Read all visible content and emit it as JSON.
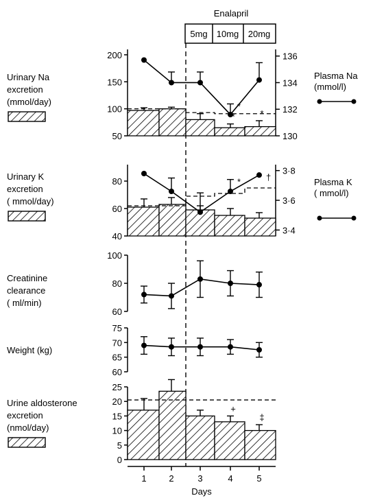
{
  "chart_data": {
    "type": "bar",
    "xlabel": "Days",
    "x_ticks": [
      "1",
      "2",
      "3",
      "4",
      "5"
    ],
    "treatment": {
      "title": "Enalapril",
      "doses": [
        {
          "label": "5mg",
          "day": 3
        },
        {
          "label": "10mg",
          "day": 4
        },
        {
          "label": "20mg",
          "day": 5
        }
      ]
    },
    "panels": [
      {
        "id": "na",
        "left_label_lines": [
          "Urinary Na",
          "excretion",
          "(mmol/day)"
        ],
        "right_label_lines": [
          "Plasma Na",
          "(mmol/l)"
        ],
        "left_ylim": [
          50,
          210
        ],
        "left_ticks": [
          "200",
          "150",
          "100",
          "50"
        ],
        "right_ylim": [
          130,
          136.5
        ],
        "right_ticks": [
          "136",
          "134",
          "132",
          "130"
        ],
        "bar_series": {
          "type": "bar",
          "values": [
            97,
            100,
            80,
            65,
            67
          ],
          "errors": [
            5,
            3,
            11,
            7,
            11
          ]
        },
        "line_series": {
          "type": "line",
          "axis": "right",
          "values": [
            135.7,
            134.0,
            134.0,
            131.6,
            134.2
          ],
          "errors": [
            0,
            0.8,
            0.8,
            0.8,
            1.3
          ],
          "annotations": [
            {
              "day": 4,
              "text": "*"
            }
          ]
        },
        "bar_annotations": [
          {
            "day": 4,
            "text": "*"
          },
          {
            "day": 5,
            "text": "*"
          }
        ],
        "dashed_reference": {
          "from_day": 1,
          "to_day": 5,
          "values": [
            100,
            100,
            93,
            91,
            91
          ]
        }
      },
      {
        "id": "k",
        "left_label_lines": [
          "Urinary K",
          "excretion",
          "( mmol/day)"
        ],
        "right_label_lines": [
          "Plasma K",
          "( mmol/l)"
        ],
        "left_ylim": [
          40,
          92
        ],
        "left_ticks": [
          "80",
          "60",
          "40"
        ],
        "right_ylim": [
          3.36,
          3.84
        ],
        "right_ticks": [
          "3·8",
          "3·6",
          "3·4"
        ],
        "bar_series": {
          "type": "bar",
          "values": [
            61,
            63,
            59,
            55,
            53
          ],
          "errors": [
            6,
            5,
            3,
            5,
            4
          ]
        },
        "line_series": {
          "type": "line",
          "axis": "right",
          "values": [
            3.78,
            3.66,
            3.52,
            3.66,
            3.77
          ],
          "errors": [
            0,
            0.09,
            0.13,
            0.08,
            0
          ],
          "annotations": [
            {
              "day": 4,
              "text": "*"
            },
            {
              "day": 5,
              "text": "†"
            }
          ]
        },
        "dashed_reference": {
          "from_day": 1,
          "to_day": 5,
          "values": [
            62,
            62,
            69,
            71,
            75
          ]
        }
      },
      {
        "id": "creat",
        "left_label_lines": [
          "Creatinine",
          "clearance",
          "( ml/min)"
        ],
        "left_ylim": [
          60,
          100
        ],
        "left_ticks": [
          "100",
          "80",
          "60"
        ],
        "line_series": {
          "type": "line",
          "values": [
            72,
            71,
            83,
            80,
            79
          ],
          "errors": [
            6,
            9,
            13,
            9,
            9
          ]
        }
      },
      {
        "id": "weight",
        "left_label_lines": [
          "Weight (kg)"
        ],
        "left_ylim": [
          60,
          75
        ],
        "left_ticks": [
          "75",
          "70",
          "65",
          "60"
        ],
        "line_series": {
          "type": "line",
          "values": [
            69,
            68.5,
            68.5,
            68.5,
            67.5
          ],
          "errors": [
            3,
            3,
            3,
            2.5,
            2.5
          ]
        }
      },
      {
        "id": "aldo",
        "left_label_lines": [
          "Urine aldosterone",
          "excretion",
          "(nmol/day)"
        ],
        "left_ylim": [
          0,
          25
        ],
        "left_ticks": [
          "25",
          "20",
          "15",
          "10",
          "5",
          "0"
        ],
        "bar_series": {
          "type": "bar",
          "values": [
            17,
            23.5,
            15,
            13,
            10
          ],
          "errors": [
            4,
            4,
            2,
            2,
            2
          ]
        },
        "bar_annotations": [
          {
            "day": 4,
            "text": "+"
          },
          {
            "day": 5,
            "text": "‡"
          }
        ],
        "dashed_reference": {
          "from_day": 1,
          "to_day": 5,
          "values": [
            20.5,
            20.5,
            20.5,
            20.5,
            20.5
          ]
        }
      }
    ]
  }
}
